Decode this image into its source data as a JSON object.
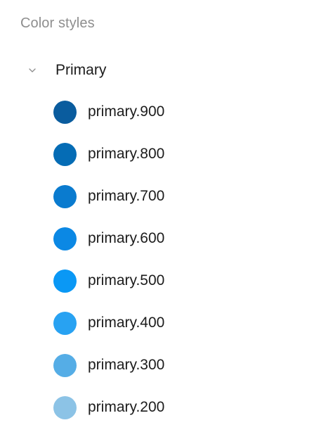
{
  "panel": {
    "header": "Color styles",
    "group": {
      "label": "Primary",
      "chevron_icon": "chevron-down-icon",
      "items": [
        {
          "label": "primary.900",
          "color": "#0a5c9e"
        },
        {
          "label": "primary.800",
          "color": "#056cb5"
        },
        {
          "label": "primary.700",
          "color": "#0a7bcf"
        },
        {
          "label": "primary.600",
          "color": "#0b88e4"
        },
        {
          "label": "primary.500",
          "color": "#0a98f5"
        },
        {
          "label": "primary.400",
          "color": "#28a2f2"
        },
        {
          "label": "primary.300",
          "color": "#55ade6"
        },
        {
          "label": "primary.200",
          "color": "#8cc3e6"
        }
      ]
    }
  }
}
